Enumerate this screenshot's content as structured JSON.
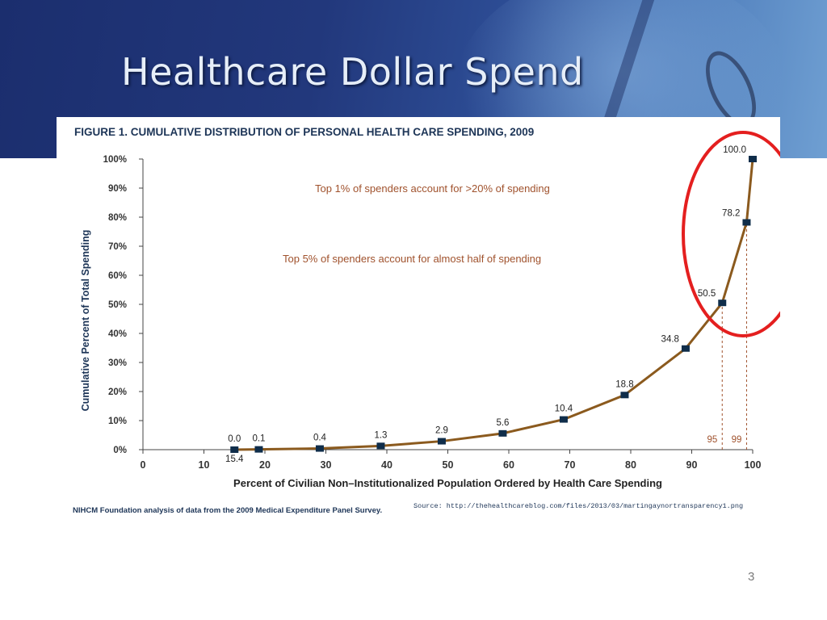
{
  "slide": {
    "title": "Healthcare Dollar Spend",
    "page_number": "3"
  },
  "chart_data": {
    "type": "line",
    "title": "FIGURE 1. CUMULATIVE DISTRIBUTION OF PERSONAL HEALTH CARE SPENDING, 2009",
    "xlabel": "Percent of Civilian Non–Institutionalized Population Ordered by Health Care Spending",
    "ylabel": "Cumulative Percent of Total Spending",
    "xlim": [
      0,
      100
    ],
    "ylim": [
      0,
      100
    ],
    "x_ticks": [
      "0",
      "10",
      "20",
      "30",
      "40",
      "50",
      "60",
      "70",
      "80",
      "90",
      "100"
    ],
    "y_ticks": [
      "0%",
      "10%",
      "20%",
      "30%",
      "40%",
      "50%",
      "60%",
      "70%",
      "80%",
      "90%",
      "100%"
    ],
    "grid": false,
    "series": [
      {
        "color": "#8b5a1e",
        "marker_color": "#0f2d4a",
        "points": [
          {
            "x": 15,
            "y": 0.0,
            "label": "0.0"
          },
          {
            "x": 19,
            "y": 0.1,
            "label": "0.1"
          },
          {
            "x": 29,
            "y": 0.4,
            "label": "0.4"
          },
          {
            "x": 39,
            "y": 1.3,
            "label": "1.3"
          },
          {
            "x": 49,
            "y": 2.9,
            "label": "2.9"
          },
          {
            "x": 59,
            "y": 5.6,
            "label": "5.6"
          },
          {
            "x": 69,
            "y": 10.4,
            "label": "10.4"
          },
          {
            "x": 79,
            "y": 18.8,
            "label": "18.8"
          },
          {
            "x": 89,
            "y": 34.8,
            "label": "34.8"
          },
          {
            "x": 95,
            "y": 50.5,
            "label": "50.5"
          },
          {
            "x": 99,
            "y": 78.2,
            "label": "78.2"
          },
          {
            "x": 100,
            "y": 100.0,
            "label": "100.0"
          }
        ]
      }
    ],
    "x_annotation": "15.4",
    "reference_lines": [
      {
        "x": 95,
        "label": "95"
      },
      {
        "x": 99,
        "label": "99"
      }
    ],
    "annotations": [
      "Top 1% of spenders account for >20% of spending",
      "Top 5% of spenders account for almost half of spending"
    ],
    "annotation_color": "#a0522d",
    "footnote": "NIHCM Foundation analysis of data from the 2009 Medical Expenditure Panel Survey.",
    "source": "Source: http://thehealthcareblog.com/files/2013/03/martingaynortransparency1.png",
    "highlight_color": "#e41f1f"
  }
}
